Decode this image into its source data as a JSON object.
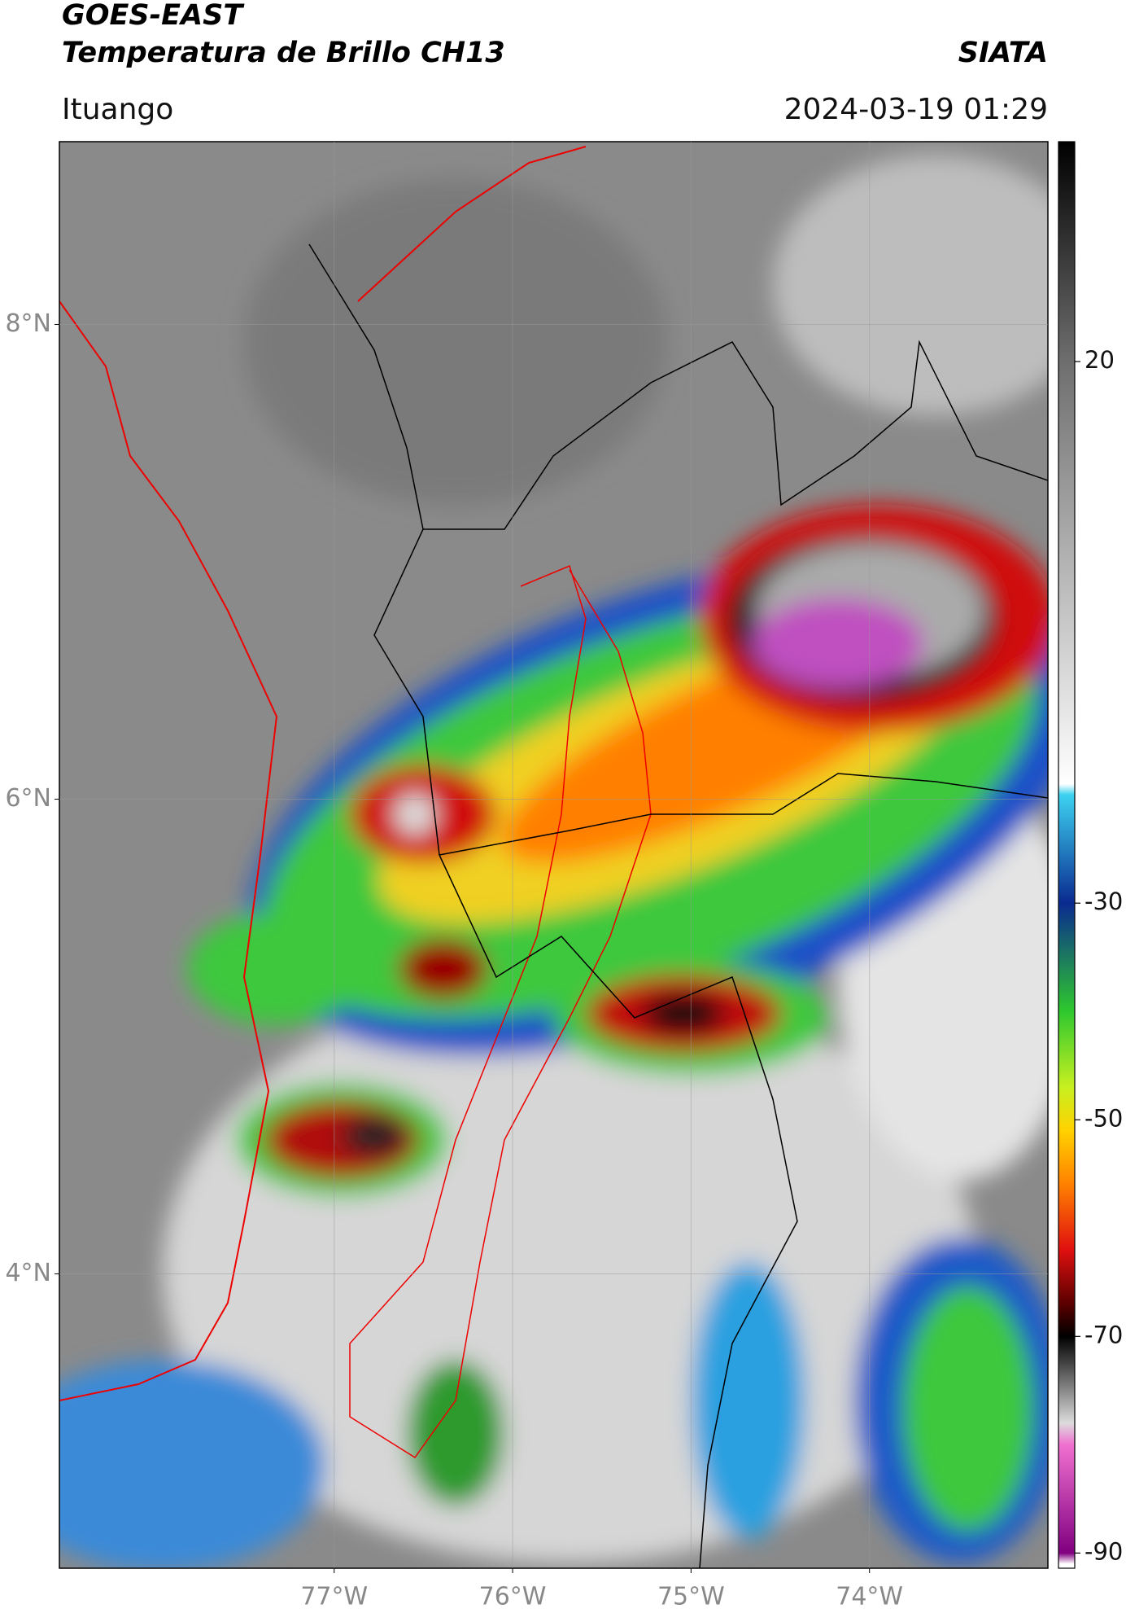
{
  "header": {
    "title": "GOES-EAST",
    "subtitle": "Temperatura de Brillo CH13",
    "source": "SIATA",
    "location": "Ituango",
    "datetime": "2024-03-19 01:29"
  },
  "map": {
    "xlim": [
      -78.54,
      -73.0
    ],
    "ylim": [
      2.76,
      8.77
    ],
    "xticks": [
      {
        "value": -77,
        "label": "77°W"
      },
      {
        "value": -76,
        "label": "76°W"
      },
      {
        "value": -75,
        "label": "75°W"
      },
      {
        "value": -74,
        "label": "74°W"
      }
    ],
    "yticks": [
      {
        "value": 8,
        "label": "8°N"
      },
      {
        "value": 6,
        "label": "6°N"
      },
      {
        "value": 4,
        "label": "4°N"
      }
    ],
    "grid": true
  },
  "colorbar": {
    "clim": [
      -91.4,
      40.3
    ],
    "ticks": [
      20,
      -30,
      -50,
      -70,
      -90
    ],
    "stops": [
      {
        "value": 40.3,
        "color": "#000000"
      },
      {
        "value": 20,
        "color": "#6e6e6e"
      },
      {
        "value": -19,
        "color": "#ffffff"
      },
      {
        "value": -20,
        "color": "#3cd2f0"
      },
      {
        "value": -30,
        "color": "#0a2a90"
      },
      {
        "value": -40,
        "color": "#2ec82e"
      },
      {
        "value": -47,
        "color": "#c8f020"
      },
      {
        "value": -51,
        "color": "#ffd200"
      },
      {
        "value": -56,
        "color": "#ff8000"
      },
      {
        "value": -62,
        "color": "#e01010"
      },
      {
        "value": -67,
        "color": "#5a0000"
      },
      {
        "value": -70,
        "color": "#000000"
      },
      {
        "value": -78,
        "color": "#dcdcdc"
      },
      {
        "value": -80,
        "color": "#f070d0"
      },
      {
        "value": -90,
        "color": "#800080"
      },
      {
        "value": -91,
        "color": "#ffffff"
      }
    ]
  }
}
